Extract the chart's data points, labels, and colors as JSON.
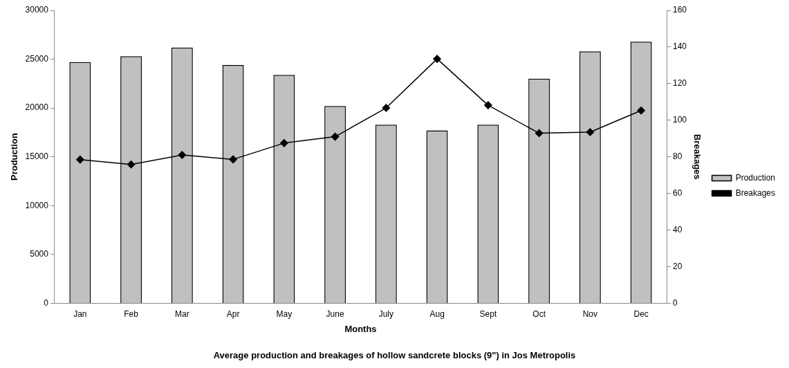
{
  "chart_data": {
    "type": "bar",
    "title": "Average production and breakages of hollow sandcrete blocks (9\") in Jos Metropolis",
    "xlabel": "Months",
    "ylabel": "Production",
    "y2label": "Breakages",
    "categories": [
      "Jan",
      "Feb",
      "Mar",
      "Apr",
      "May",
      "June",
      "July",
      "Aug",
      "Sept",
      "Oct",
      "Nov",
      "Dec"
    ],
    "series": [
      {
        "name": "Production",
        "color": "#c0c0c0",
        "values": [
          24700,
          25300,
          26200,
          24400,
          23400,
          20200,
          18300,
          17700,
          18300,
          23000,
          25800,
          26800
        ]
      },
      {
        "name": "Breakages",
        "type": "line",
        "axis": "y2",
        "color": "#000000",
        "marker": "diamond",
        "values": [
          78.5,
          75.8,
          81,
          78.6,
          87.5,
          91,
          106.7,
          133.5,
          108.2,
          92.9,
          93.5,
          105.3
        ]
      }
    ],
    "ylim": [
      0,
      30000
    ],
    "yticks": [
      0,
      5000,
      10000,
      15000,
      20000,
      25000,
      30000
    ],
    "y2lim": [
      0,
      160
    ],
    "y2ticks": [
      0,
      20,
      40,
      60,
      80,
      100,
      120,
      140,
      160
    ],
    "grid": false,
    "legend": "right"
  }
}
